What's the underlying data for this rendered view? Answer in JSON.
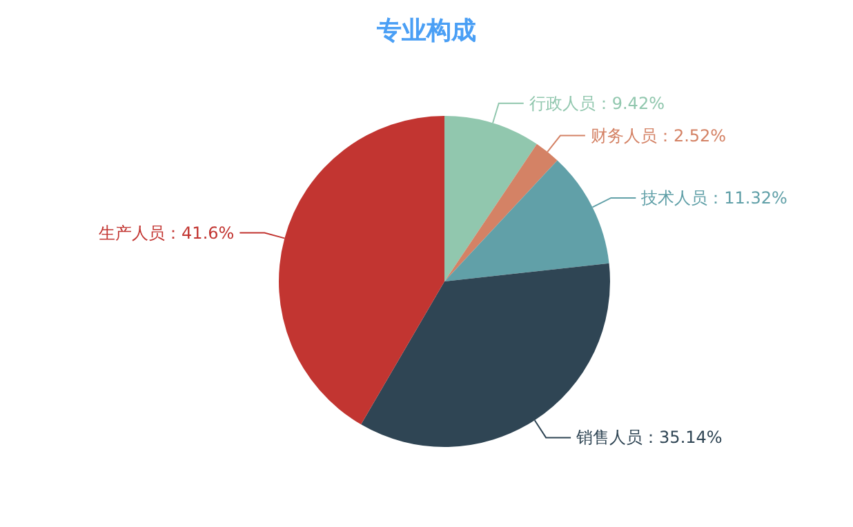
{
  "chart_data": {
    "type": "pie",
    "title": "专业构成",
    "categories": [
      "行政人员",
      "财务人员",
      "技术人员",
      "销售人员",
      "生产人员"
    ],
    "values": [
      9.42,
      2.52,
      11.32,
      35.14,
      41.6
    ],
    "colors": [
      "#91c7ae",
      "#d48265",
      "#61a0a8",
      "#2f4554",
      "#c23531"
    ],
    "value_labels": [
      "：9.42%",
      "：2.52%",
      "：11.32%",
      "：35.14%",
      "：41.6%"
    ]
  }
}
